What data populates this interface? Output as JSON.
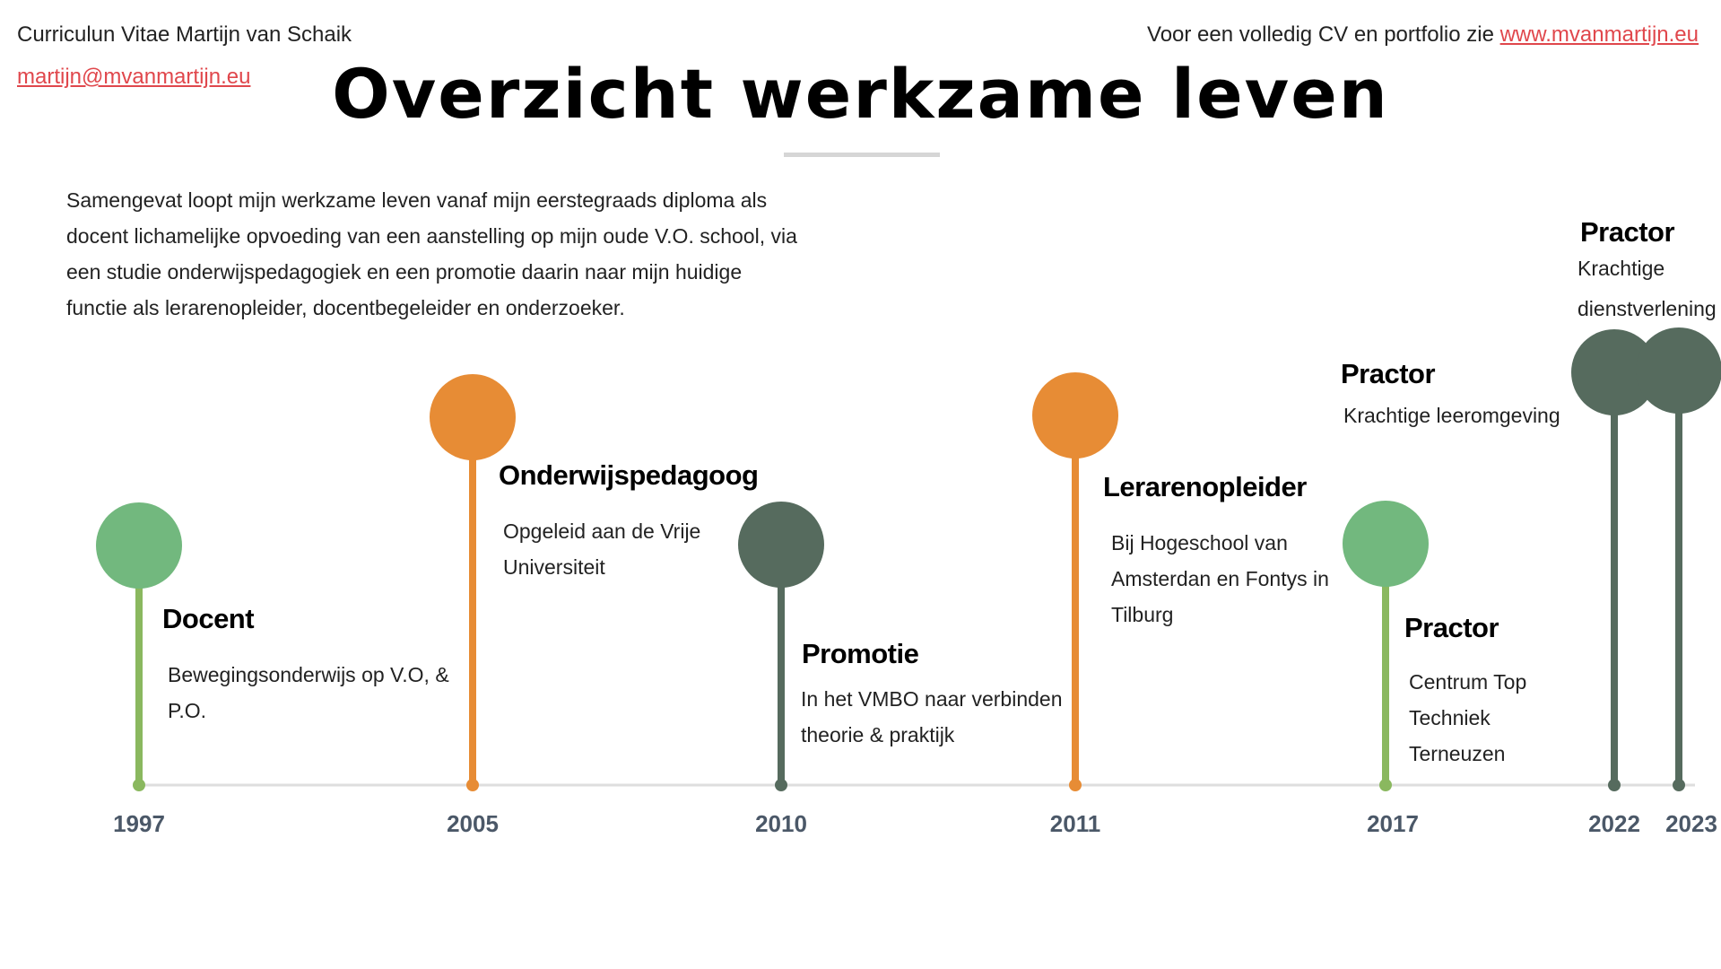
{
  "header": {
    "cv_title": "Curriculun Vitae Martijn van Schaik",
    "email": "martijn@mvanmartijn.eu",
    "portfolio_text": "Voor een volledig CV en portfolio zie ",
    "portfolio_link": "www.mvanmartijn.eu"
  },
  "page_title": "Overzicht werkzame leven",
  "summary": "Samengevat loopt mijn werkzame leven vanaf mijn eerstegraads diploma als docent lichamelijke opvoeding van een aanstelling op mijn oude V.O. school, via een studie onderwijspedagogiek en een promotie daarin naar mijn huidige functie als lerarenopleider, docentbegeleider en onderzoeker.",
  "colors": {
    "light_green": "#72b87e",
    "light_green_stem": "#8ab85f",
    "orange": "#e78c35",
    "dark_green": "#566b5e",
    "baseline": "#dedede",
    "year": "#4b5868",
    "link": "#e0474c"
  },
  "events": [
    {
      "year": "1997",
      "title": "Docent",
      "desc": "Bewegingsonderwijs op V.O, & P.O.",
      "color": "light_green"
    },
    {
      "year": "2005",
      "title": "Onderwijspedagoog",
      "desc": "Opgeleid aan de Vrije Universiteit",
      "color": "orange"
    },
    {
      "year": "2010",
      "title": "Promotie",
      "desc": "In het VMBO naar verbinden theorie & praktijk",
      "color": "dark_green"
    },
    {
      "year": "2011",
      "title": "Lerarenopleider",
      "desc": "Bij Hogeschool van Amsterdan en Fontys in Tilburg",
      "color": "orange"
    },
    {
      "year": "2017",
      "title": "Practor",
      "desc": "Centrum Top Techniek Terneuzen",
      "color": "light_green"
    },
    {
      "year": "2022",
      "title": "Practor",
      "desc": "Krachtige leeromgeving",
      "color": "dark_green"
    },
    {
      "year": "2023",
      "title": "Practor",
      "desc": "Krachtige dienstverlening",
      "color": "dark_green"
    }
  ]
}
